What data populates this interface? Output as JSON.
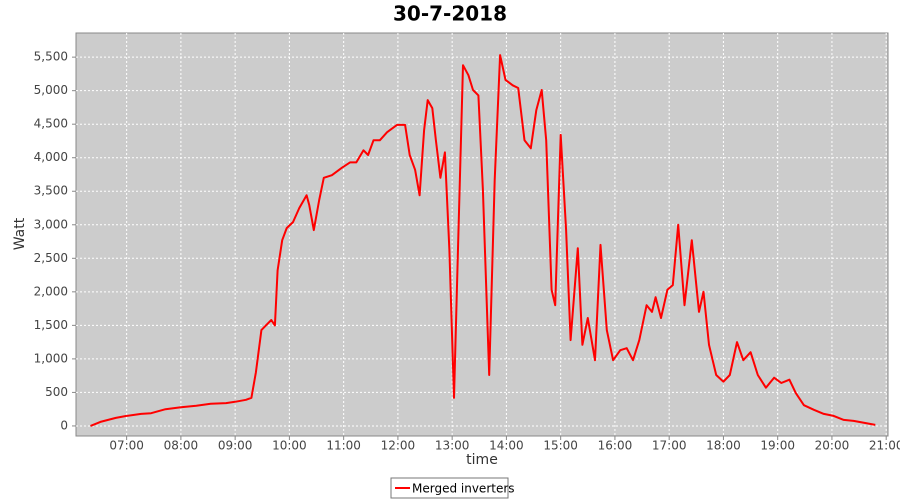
{
  "chart_data": {
    "type": "line",
    "title": "30-7-2018",
    "xlabel": "time",
    "ylabel": "Watt",
    "xlim": [
      "06:04",
      "21:02"
    ],
    "xticks": [
      "07:00",
      "08:00",
      "09:00",
      "10:00",
      "11:00",
      "12:00",
      "13:00",
      "14:00",
      "15:00",
      "16:00",
      "17:00",
      "18:00",
      "19:00",
      "20:00",
      "21:00"
    ],
    "ylim": [
      -150,
      5860
    ],
    "yticks": [
      0,
      500,
      {
        "value": 1000,
        "label": "1,000"
      },
      {
        "value": 1500,
        "label": "1,500"
      },
      {
        "value": 2000,
        "label": "2,000"
      },
      {
        "value": 2500,
        "label": "2,500"
      },
      {
        "value": 3000,
        "label": "3,000"
      },
      {
        "value": 3500,
        "label": "3,500"
      },
      {
        "value": 4000,
        "label": "4,000"
      },
      {
        "value": 4500,
        "label": "4,500"
      },
      {
        "value": 5000,
        "label": "5,000"
      },
      {
        "value": 5500,
        "label": "5,500"
      }
    ],
    "grid": true,
    "legend": "bottom",
    "x": [
      "06:20",
      "06:31",
      "06:48",
      "07:00",
      "07:16",
      "07:27",
      "07:43",
      "08:00",
      "08:17",
      "08:33",
      "08:50",
      "09:00",
      "09:12",
      "09:18",
      "09:23",
      "09:29",
      "09:34",
      "09:40",
      "09:44",
      "09:47",
      "09:52",
      "09:57",
      "10:04",
      "10:11",
      "10:19",
      "10:22",
      "10:27",
      "10:33",
      "10:38",
      "10:47",
      "10:58",
      "11:07",
      "11:14",
      "11:22",
      "11:27",
      "11:33",
      "11:40",
      "11:48",
      "11:59",
      "12:04",
      "12:08",
      "12:13",
      "12:19",
      "12:24",
      "12:29",
      "12:33",
      "12:38",
      "12:42",
      "12:47",
      "12:52",
      "12:57",
      "13:02",
      "13:07",
      "13:12",
      "13:18",
      "13:23",
      "13:29",
      "13:34",
      "13:41",
      "13:47",
      "13:53",
      "13:59",
      "14:07",
      "14:13",
      "14:20",
      "14:27",
      "14:33",
      "14:39",
      "14:44",
      "14:50",
      "14:54",
      "15:00",
      "15:06",
      "15:11",
      "15:19",
      "15:24",
      "15:30",
      "15:38",
      "15:44",
      "15:51",
      "15:58",
      "16:06",
      "16:13",
      "16:20",
      "16:27",
      "16:35",
      "16:41",
      "16:45",
      "16:51",
      "16:58",
      "17:04",
      "17:10",
      "17:17",
      "17:25",
      "17:33",
      "17:38",
      "17:44",
      "17:52",
      "18:00",
      "18:07",
      "18:15",
      "18:22",
      "18:30",
      "18:38",
      "18:47",
      "18:56",
      "19:04",
      "19:13",
      "19:20",
      "19:29",
      "19:40",
      "19:51",
      "20:02",
      "20:13",
      "20:24",
      "20:36",
      "20:48"
    ],
    "series": [
      {
        "name": "Merged inverters",
        "color": "#ff0000",
        "values": [
          0,
          60,
          120,
          150,
          180,
          190,
          250,
          280,
          300,
          330,
          340,
          360,
          390,
          420,
          800,
          1430,
          1500,
          1580,
          1500,
          2320,
          2770,
          2950,
          3040,
          3250,
          3440,
          3290,
          2920,
          3370,
          3700,
          3740,
          3850,
          3930,
          3930,
          4110,
          4040,
          4260,
          4260,
          4380,
          4490,
          4490,
          4490,
          4040,
          3820,
          3440,
          4410,
          4860,
          4740,
          4260,
          3700,
          4080,
          2620,
          420,
          2920,
          5380,
          5230,
          5010,
          4930,
          3520,
          760,
          3670,
          5530,
          5160,
          5080,
          5040,
          4260,
          4140,
          4710,
          5010,
          4260,
          2030,
          1800,
          4340,
          2920,
          1280,
          2650,
          1210,
          1610,
          980,
          2700,
          1430,
          980,
          1130,
          1160,
          980,
          1280,
          1800,
          1700,
          1920,
          1610,
          2030,
          2100,
          3000,
          1800,
          2770,
          1700,
          2000,
          1210,
          760,
          660,
          760,
          1250,
          980,
          1100,
          760,
          570,
          720,
          640,
          690,
          490,
          310,
          240,
          180,
          150,
          90,
          75,
          45,
          15
        ]
      }
    ]
  }
}
